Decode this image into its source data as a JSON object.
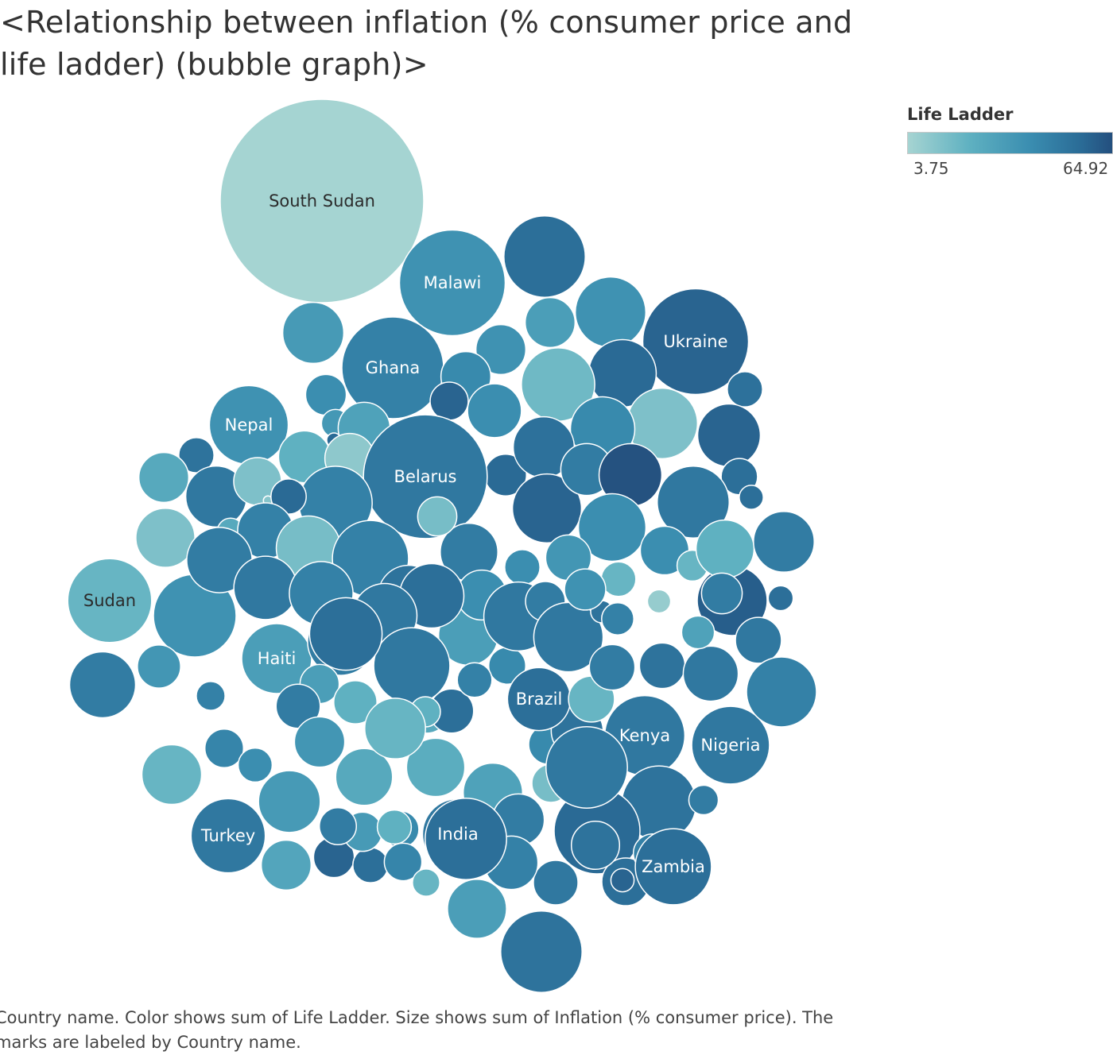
{
  "chart_data": {
    "type": "bubble",
    "title": "<Relationship between inflation (% consumer price and life ladder) (bubble graph)>",
    "legend": {
      "title": "Life Ladder",
      "min_label": "3.75",
      "max_label": "64.92",
      "min": 3.75,
      "max": 64.92,
      "placement": "top-right"
    },
    "caption": "Country name.  Color shows sum of Life Ladder.  Size shows sum of Inflation (% consumer price).  The marks are labeled by Country name.",
    "colors": {
      "low": "#a6d4d2",
      "mid_low": "#5fb1c1",
      "mid": "#3a8db0",
      "mid_high": "#2a6b96",
      "high": "#244f7e"
    },
    "bubbles": [
      {
        "label": "South Sudan",
        "size": 100,
        "life_ladder": 4
      },
      {
        "label": "Malawi",
        "size": 27,
        "life_ladder": 38
      },
      {
        "label": "",
        "size": 16,
        "life_ladder": 54
      },
      {
        "label": "",
        "size": 6,
        "life_ladder": 32
      },
      {
        "label": "",
        "size": 12,
        "life_ladder": 38
      },
      {
        "label": "Ukraine",
        "size": 27,
        "life_ladder": 58
      },
      {
        "label": "",
        "size": 11,
        "life_ladder": 56
      },
      {
        "label": "Ghana",
        "size": 25,
        "life_ladder": 46
      },
      {
        "label": "",
        "size": 9,
        "life_ladder": 34
      },
      {
        "label": "",
        "size": 13,
        "life_ladder": 18
      },
      {
        "label": "",
        "size": 6,
        "life_ladder": 38
      },
      {
        "label": "",
        "size": 3,
        "life_ladder": 53
      },
      {
        "label": "",
        "size": 6,
        "life_ladder": 42
      },
      {
        "label": "",
        "size": 4,
        "life_ladder": 40
      },
      {
        "label": "",
        "size": 1.9,
        "life_ladder": 35
      },
      {
        "label": "",
        "size": 9.5,
        "life_ladder": 58
      },
      {
        "label": "",
        "size": 6.5,
        "life_ladder": 30
      },
      {
        "label": "",
        "size": 12,
        "life_ladder": 14
      },
      {
        "label": "",
        "size": 10,
        "life_ladder": 42
      },
      {
        "label": "Nepal",
        "size": 15,
        "life_ladder": 38
      },
      {
        "label": "",
        "size": 1,
        "life_ladder": 10
      },
      {
        "label": "",
        "size": 0.5,
        "life_ladder": 56
      },
      {
        "label": "",
        "size": 3,
        "life_ladder": 52
      },
      {
        "label": "",
        "size": 6.5,
        "life_ladder": 22
      },
      {
        "label": "",
        "size": 6,
        "life_ladder": 10
      },
      {
        "label": "",
        "size": 6,
        "life_ladder": 26
      },
      {
        "label": "",
        "size": 3.5,
        "life_ladder": 58
      },
      {
        "label": "",
        "size": 4.2,
        "life_ladder": 56
      },
      {
        "label": "Belarus",
        "size": 37,
        "life_ladder": 50
      },
      {
        "label": "",
        "size": 9,
        "life_ladder": 53
      },
      {
        "label": "",
        "size": 7,
        "life_ladder": 40
      },
      {
        "label": "",
        "size": 3.2,
        "life_ladder": 54
      },
      {
        "label": "",
        "size": 9,
        "life_ladder": 50
      },
      {
        "label": "",
        "size": 11.5,
        "life_ladder": 58
      },
      {
        "label": "",
        "size": 13,
        "life_ladder": 46
      },
      {
        "label": "",
        "size": 5.5,
        "life_ladder": 14
      },
      {
        "label": "",
        "size": 0.2,
        "life_ladder": 12
      },
      {
        "label": "",
        "size": 3,
        "life_ladder": 56
      },
      {
        "label": "",
        "size": 6.5,
        "life_ladder": 48
      },
      {
        "label": "",
        "size": 9.5,
        "life_ladder": 64
      },
      {
        "label": "",
        "size": 8.4,
        "life_ladder": 14
      },
      {
        "label": "",
        "size": 11,
        "life_ladder": 40
      },
      {
        "label": "",
        "size": 1.7,
        "life_ladder": 26
      },
      {
        "label": "",
        "size": 7.5,
        "life_ladder": 46
      },
      {
        "label": "",
        "size": 12.5,
        "life_ladder": 50
      },
      {
        "label": "",
        "size": 1.4,
        "life_ladder": 54
      },
      {
        "label": "",
        "size": 10,
        "life_ladder": 16
      },
      {
        "label": "",
        "size": 8,
        "life_ladder": 48
      },
      {
        "label": "",
        "size": 14,
        "life_ladder": 46
      },
      {
        "label": "",
        "size": 3,
        "life_ladder": 40
      },
      {
        "label": "",
        "size": 9,
        "life_ladder": 52
      },
      {
        "label": "",
        "size": 8.5,
        "life_ladder": 32
      },
      {
        "label": "",
        "size": 3.3,
        "life_ladder": 42
      },
      {
        "label": "",
        "size": 6,
        "life_ladder": 40
      },
      {
        "label": "",
        "size": 11.5,
        "life_ladder": 50
      },
      {
        "label": "",
        "size": 10,
        "life_ladder": 54
      },
      {
        "label": "",
        "size": 3.8,
        "life_ladder": 48
      },
      {
        "label": "",
        "size": 10,
        "life_ladder": 50
      },
      {
        "label": "",
        "size": 5,
        "life_ladder": 36
      },
      {
        "label": "Sudan",
        "size": 17,
        "life_ladder": 20
      },
      {
        "label": "",
        "size": 16.5,
        "life_ladder": 38
      },
      {
        "label": "",
        "size": 10.3,
        "life_ladder": 48
      },
      {
        "label": "",
        "size": 9.7,
        "life_ladder": 50
      },
      {
        "label": "Haiti",
        "size": 11.8,
        "life_ladder": 32
      },
      {
        "label": "",
        "size": 9.8,
        "life_ladder": 46
      },
      {
        "label": "",
        "size": 10.8,
        "life_ladder": 48
      },
      {
        "label": "",
        "size": 3.7,
        "life_ladder": 32
      },
      {
        "label": "",
        "size": 4.5,
        "life_ladder": 36
      },
      {
        "label": "",
        "size": 4.7,
        "life_ladder": 48
      },
      {
        "label": "",
        "size": 4.5,
        "life_ladder": 22
      },
      {
        "label": "",
        "size": 4.4,
        "life_ladder": 26
      },
      {
        "label": "",
        "size": 3.6,
        "life_ladder": 44
      },
      {
        "label": "",
        "size": 4.7,
        "life_ladder": 54
      },
      {
        "label": "",
        "size": 10.5,
        "life_ladder": 48
      },
      {
        "label": "",
        "size": 2,
        "life_ladder": 46
      },
      {
        "label": "",
        "size": 2.8,
        "life_ladder": 40
      },
      {
        "label": "",
        "size": 3.8,
        "life_ladder": 42
      },
      {
        "label": "",
        "size": 1,
        "life_ladder": 44
      },
      {
        "label": "",
        "size": 8.6,
        "life_ladder": 20
      },
      {
        "label": "",
        "size": 3.5,
        "life_ladder": 16
      },
      {
        "label": "",
        "size": 9.2,
        "life_ladder": 34
      },
      {
        "label": "",
        "size": 8.5,
        "life_ladder": 30
      },
      {
        "label": "",
        "size": 14,
        "life_ladder": 50
      },
      {
        "label": "",
        "size": 12.7,
        "life_ladder": 54
      },
      {
        "label": "",
        "size": 2.9,
        "life_ladder": 46
      },
      {
        "label": "",
        "size": 6.5,
        "life_ladder": 52
      },
      {
        "label": "",
        "size": 8.5,
        "life_ladder": 58
      },
      {
        "label": "",
        "size": 11.6,
        "life_ladder": 50
      },
      {
        "label": "",
        "size": 2.2,
        "life_ladder": 22
      },
      {
        "label": "Brazil",
        "size": 9.6,
        "life_ladder": 54
      },
      {
        "label": "",
        "size": 5.1,
        "life_ladder": 20
      },
      {
        "label": "",
        "size": 5,
        "life_ladder": 48
      },
      {
        "label": "",
        "size": 5,
        "life_ladder": 52
      },
      {
        "label": "",
        "size": 1.2,
        "life_ladder": 52
      },
      {
        "label": "",
        "size": 2.9,
        "life_ladder": 20
      },
      {
        "label": "",
        "size": 5.7,
        "life_ladder": 40
      },
      {
        "label": "Kenya",
        "size": 15.5,
        "life_ladder": 50
      },
      {
        "label": "Nigeria",
        "size": 14.6,
        "life_ladder": 50
      },
      {
        "label": "",
        "size": 13.4,
        "life_ladder": 52
      },
      {
        "label": "",
        "size": 2.1,
        "life_ladder": 48
      },
      {
        "label": "",
        "size": 11.8,
        "life_ladder": 60
      },
      {
        "label": "",
        "size": 7.3,
        "life_ladder": 50
      },
      {
        "label": "",
        "size": 5.1,
        "life_ladder": 50
      },
      {
        "label": "",
        "size": 1.5,
        "life_ladder": 54
      },
      {
        "label": "",
        "size": 2.6,
        "life_ladder": 30
      },
      {
        "label": "",
        "size": 2.3,
        "life_ladder": 20
      },
      {
        "label": "",
        "size": 8.1,
        "life_ladder": 22
      },
      {
        "label": "",
        "size": 11.8,
        "life_ladder": 46
      },
      {
        "label": "",
        "size": 8.9,
        "life_ladder": 48
      },
      {
        "label": "",
        "size": 4,
        "life_ladder": 48
      },
      {
        "label": "",
        "size": 1.3,
        "life_ladder": 8
      },
      {
        "label": "",
        "size": 4.1,
        "life_ladder": 38
      },
      {
        "label": "",
        "size": 2.5,
        "life_ladder": 46
      },
      {
        "label": "India",
        "size": 12.1,
        "life_ladder": 50
      },
      {
        "label": "",
        "size": 6.5,
        "life_ladder": 48
      },
      {
        "label": "",
        "size": 4.8,
        "life_ladder": 50
      },
      {
        "label": "",
        "size": 17.8,
        "life_ladder": 56
      },
      {
        "label": "",
        "size": 5.5,
        "life_ladder": 54
      },
      {
        "label": "",
        "size": 3.6,
        "life_ladder": 46
      },
      {
        "label": "Zambia",
        "size": 14,
        "life_ladder": 54
      },
      {
        "label": "",
        "size": 1.3,
        "life_ladder": 58
      },
      {
        "label": "Turkey",
        "size": 13.3,
        "life_ladder": 50
      },
      {
        "label": "",
        "size": 6,
        "life_ladder": 28
      },
      {
        "label": "",
        "size": 4,
        "life_ladder": 58
      },
      {
        "label": "",
        "size": 3,
        "life_ladder": 54
      },
      {
        "label": "",
        "size": 3.2,
        "life_ladder": 42
      },
      {
        "label": "",
        "size": 3.4,
        "life_ladder": 44
      },
      {
        "label": "",
        "size": 1.8,
        "life_ladder": 20
      },
      {
        "label": "",
        "size": 3.7,
        "life_ladder": 34
      },
      {
        "label": "",
        "size": 3.3,
        "life_ladder": 48
      },
      {
        "label": "",
        "size": 8.4,
        "life_ladder": 32
      },
      {
        "label": "",
        "size": 6.9,
        "life_ladder": 46
      },
      {
        "label": "",
        "size": 16,
        "life_ladder": 52
      },
      {
        "label": "",
        "size": 5.6,
        "life_ladder": 52
      },
      {
        "label": "",
        "size": 16,
        "life_ladder": 50
      },
      {
        "label": "",
        "size": 16,
        "life_ladder": 54
      },
      {
        "label": "",
        "size": 7.8,
        "life_ladder": 26
      },
      {
        "label": "",
        "size": 8.2,
        "life_ladder": 24
      },
      {
        "label": "",
        "size": 8.9,
        "life_ladder": 20
      },
      {
        "label": "",
        "size": 6.1,
        "life_ladder": 36
      },
      {
        "label": "",
        "size": 2.8,
        "life_ladder": 22
      },
      {
        "label": "",
        "size": 1.8,
        "life_ladder": 18
      },
      {
        "label": "",
        "size": 3.7,
        "life_ladder": 16
      }
    ]
  }
}
